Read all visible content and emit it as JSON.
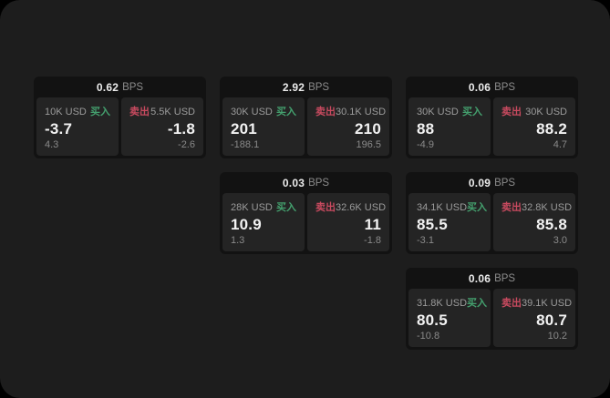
{
  "labels": {
    "buy": "买入",
    "sell": "卖出",
    "bps_unit": "BPS"
  },
  "colors": {
    "app_bg": "#1d1d1d",
    "card_bg": "#121212",
    "panel_bg": "#242424",
    "buy_green": "#44a06e",
    "sell_red": "#c84a5f"
  },
  "cards": [
    {
      "bps": "0.62",
      "row": 1,
      "col": 1,
      "buy": {
        "size": "10K USD",
        "main": "-3.7",
        "sub": "4.3"
      },
      "sell": {
        "size": "5.5K USD",
        "main": "-1.8",
        "sub": "-2.6"
      }
    },
    {
      "bps": "2.92",
      "row": 1,
      "col": 2,
      "buy": {
        "size": "30K USD",
        "main": "201",
        "sub": "-188.1"
      },
      "sell": {
        "size": "30.1K USD",
        "main": "210",
        "sub": "196.5"
      }
    },
    {
      "bps": "0.06",
      "row": 1,
      "col": 3,
      "buy": {
        "size": "30K USD",
        "main": "88",
        "sub": "-4.9"
      },
      "sell": {
        "size": "30K USD",
        "main": "88.2",
        "sub": "4.7"
      }
    },
    {
      "bps": "0.03",
      "row": 2,
      "col": 2,
      "buy": {
        "size": "28K USD",
        "main": "10.9",
        "sub": "1.3"
      },
      "sell": {
        "size": "32.6K USD",
        "main": "11",
        "sub": "-1.8"
      }
    },
    {
      "bps": "0.09",
      "row": 2,
      "col": 3,
      "buy": {
        "size": "34.1K USD",
        "main": "85.5",
        "sub": "-3.1"
      },
      "sell": {
        "size": "32.8K USD",
        "main": "85.8",
        "sub": "3.0"
      }
    },
    {
      "bps": "0.06",
      "row": 3,
      "col": 3,
      "buy": {
        "size": "31.8K USD",
        "main": "80.5",
        "sub": "-10.8"
      },
      "sell": {
        "size": "39.1K USD",
        "main": "80.7",
        "sub": "10.2"
      }
    }
  ]
}
